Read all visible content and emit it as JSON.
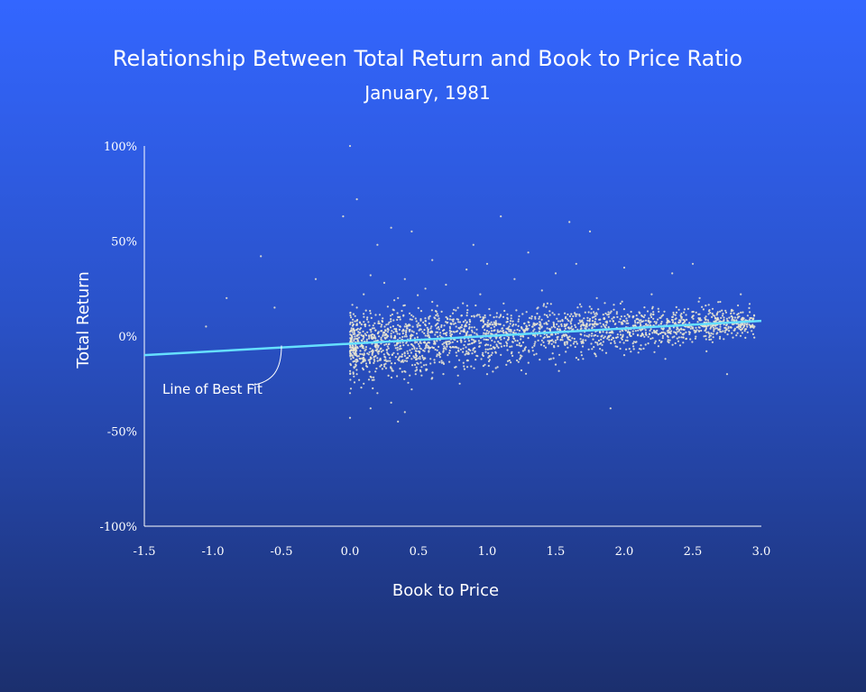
{
  "chart_data": {
    "type": "scatter",
    "title": "Relationship Between Total Return and Book to Price Ratio",
    "subtitle": "January, 1981",
    "xlabel": "Book to Price",
    "ylabel": "Total Return",
    "xlim": [
      -1.5,
      3.0
    ],
    "ylim": [
      -100,
      100
    ],
    "x_ticks": [
      "-1.5",
      "-1.0",
      "-0.5",
      "0.0",
      "0.5",
      "1.0",
      "1.5",
      "2.0",
      "2.5",
      "3.0"
    ],
    "y_ticks": [
      "100%",
      "50%",
      "0%",
      "-50%",
      "-100%"
    ],
    "grid": false,
    "best_fit_line": {
      "x": [
        -1.5,
        3.0
      ],
      "y": [
        -10,
        8
      ]
    },
    "annotation": {
      "text": "Line of Best Fit",
      "points_to": [
        -0.5,
        -5
      ]
    },
    "colors": {
      "points": "#e8e4d0",
      "fit_line": "#66e0ff",
      "axis": "#ffffff"
    },
    "points": [
      [
        0.0,
        100
      ],
      [
        0.05,
        72
      ],
      [
        -0.05,
        63
      ],
      [
        1.1,
        63
      ],
      [
        -0.65,
        42
      ],
      [
        -0.9,
        20
      ],
      [
        -0.55,
        15
      ],
      [
        -1.05,
        5
      ],
      [
        1.9,
        -38
      ],
      [
        0.35,
        -45
      ],
      [
        0.0,
        -43
      ],
      [
        -0.25,
        30
      ],
      [
        2.5,
        38
      ],
      [
        1.6,
        60
      ],
      [
        1.75,
        55
      ],
      [
        0.3,
        57
      ],
      [
        0.2,
        48
      ],
      [
        0.45,
        55
      ],
      [
        2.85,
        22
      ],
      [
        2.7,
        18
      ],
      [
        2.95,
        5
      ],
      [
        2.75,
        -20
      ],
      [
        0.9,
        48
      ],
      [
        1.3,
        44
      ],
      [
        0.6,
        40
      ],
      [
        0.85,
        35
      ],
      [
        1.0,
        38
      ],
      [
        1.5,
        33
      ],
      [
        1.65,
        38
      ],
      [
        2.0,
        36
      ],
      [
        2.35,
        33
      ],
      [
        1.2,
        30
      ],
      [
        0.15,
        32
      ],
      [
        0.25,
        28
      ],
      [
        0.4,
        30
      ],
      [
        0.55,
        25
      ],
      [
        0.7,
        27
      ],
      [
        0.1,
        22
      ],
      [
        0.35,
        20
      ],
      [
        0.05,
        15
      ],
      [
        0.6,
        18
      ],
      [
        0.95,
        22
      ],
      [
        1.4,
        24
      ],
      [
        1.8,
        20
      ],
      [
        2.2,
        22
      ],
      [
        2.55,
        20
      ],
      [
        2.8,
        12
      ],
      [
        2.9,
        2
      ],
      [
        0.05,
        -20
      ],
      [
        0.1,
        -25
      ],
      [
        0.2,
        -30
      ],
      [
        0.3,
        -35
      ],
      [
        0.45,
        -28
      ],
      [
        0.6,
        -22
      ],
      [
        0.8,
        -25
      ],
      [
        1.0,
        -20
      ],
      [
        1.25,
        -18
      ],
      [
        1.5,
        -15
      ],
      [
        1.7,
        -12
      ],
      [
        2.0,
        -10
      ],
      [
        2.3,
        -12
      ],
      [
        2.6,
        -8
      ],
      [
        0.15,
        -38
      ],
      [
        0.4,
        -40
      ],
      [
        0.0,
        -30
      ],
      [
        0.1,
        -10
      ],
      [
        0.2,
        -5
      ],
      [
        0.3,
        0
      ],
      [
        0.4,
        5
      ],
      [
        0.5,
        -8
      ],
      [
        0.6,
        2
      ],
      [
        0.7,
        -3
      ],
      [
        0.8,
        4
      ],
      [
        0.9,
        -2
      ],
      [
        1.0,
        6
      ],
      [
        1.1,
        -4
      ],
      [
        1.2,
        3
      ],
      [
        1.3,
        -1
      ],
      [
        1.4,
        5
      ],
      [
        1.5,
        1
      ],
      [
        1.6,
        4
      ],
      [
        1.7,
        -2
      ],
      [
        1.8,
        6
      ],
      [
        1.9,
        2
      ],
      [
        2.0,
        8
      ],
      [
        2.1,
        3
      ],
      [
        2.2,
        5
      ],
      [
        2.3,
        1
      ],
      [
        2.4,
        7
      ],
      [
        2.5,
        4
      ],
      [
        2.6,
        2
      ],
      [
        2.7,
        6
      ],
      [
        2.8,
        3
      ],
      [
        2.9,
        8
      ],
      [
        0.05,
        8
      ],
      [
        0.15,
        12
      ],
      [
        0.25,
        -15
      ],
      [
        0.35,
        10
      ],
      [
        0.45,
        -12
      ],
      [
        0.55,
        8
      ],
      [
        0.65,
        -10
      ],
      [
        0.75,
        12
      ],
      [
        0.85,
        -8
      ],
      [
        0.95,
        10
      ],
      [
        1.05,
        -6
      ],
      [
        1.15,
        9
      ],
      [
        1.25,
        -5
      ],
      [
        1.35,
        10
      ],
      [
        1.45,
        -4
      ],
      [
        1.55,
        8
      ],
      [
        1.65,
        -3
      ],
      [
        1.75,
        9
      ],
      [
        1.85,
        -1
      ],
      [
        1.95,
        10
      ],
      [
        2.05,
        0
      ],
      [
        2.15,
        11
      ],
      [
        2.25,
        1
      ],
      [
        2.35,
        10
      ],
      [
        2.45,
        2
      ],
      [
        2.55,
        9
      ]
    ]
  }
}
